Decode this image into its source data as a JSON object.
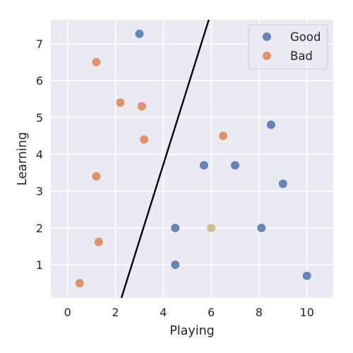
{
  "chart_data": {
    "type": "scatter",
    "title": "",
    "xlabel": "Playing",
    "ylabel": "Learning",
    "xlim": [
      -0.7,
      11.1
    ],
    "ylim": [
      0.1,
      7.65
    ],
    "xticks": [
      0,
      2,
      4,
      6,
      8,
      10
    ],
    "yticks": [
      1,
      2,
      3,
      4,
      5,
      6,
      7
    ],
    "grid": true,
    "legend_position": "top-right",
    "series": [
      {
        "name": "Good",
        "color": "#4c72b0",
        "points": [
          [
            3.0,
            7.27
          ],
          [
            8.5,
            4.8
          ],
          [
            5.7,
            3.7
          ],
          [
            7.0,
            3.7
          ],
          [
            9.0,
            3.2
          ],
          [
            4.5,
            2.0
          ],
          [
            8.1,
            2.0
          ],
          [
            4.5,
            1.0
          ],
          [
            10.0,
            0.7
          ]
        ]
      },
      {
        "name": "Bad",
        "color": "#dd8452",
        "points": [
          [
            1.2,
            6.5
          ],
          [
            2.2,
            5.4
          ],
          [
            3.1,
            5.3
          ],
          [
            6.5,
            4.5
          ],
          [
            3.2,
            4.4
          ],
          [
            1.2,
            3.4
          ],
          [
            1.3,
            1.62
          ],
          [
            0.5,
            0.5
          ]
        ]
      }
    ],
    "extra_points": [
      {
        "x": 6.0,
        "y": 2.0,
        "color": "#ccb974"
      }
    ],
    "decision_line": {
      "x1": 2.25,
      "y1": 0.1,
      "x2": 5.9,
      "y2": 7.65,
      "color": "#000000"
    }
  }
}
